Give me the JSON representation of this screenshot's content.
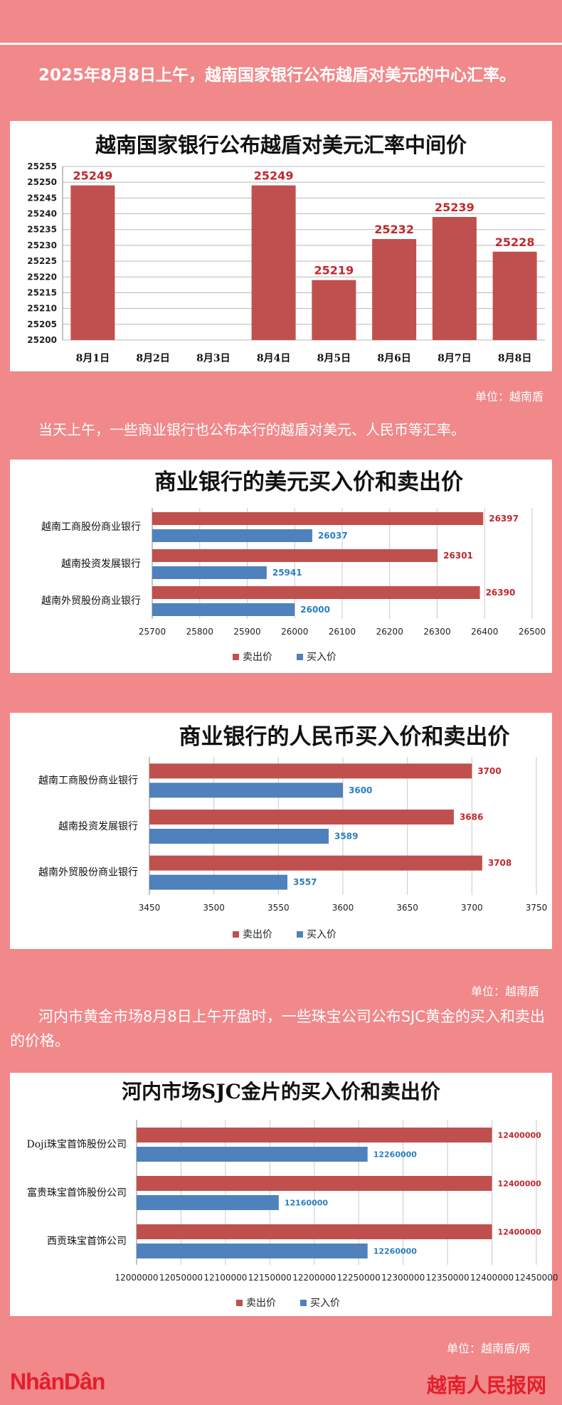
{
  "intro_1": "2025年8月8日上午，越南国家银行公布越盾对美元的中心汇率。",
  "intro_2": "当天上午，一些商业银行也公布本行的越盾对美元、人民币等汇率。",
  "unit_1": "单位：越南盾",
  "unit_2": "单位：越南盾",
  "intro_3": "河内市黄金市场8月8日上午开盘时，一些珠宝公司公布SJC黄金的买入和卖出的价格。",
  "unit_3": "单位：越南盾/两",
  "footer": {
    "logo": "NhânDân",
    "site": "越南人民报网"
  },
  "colors": {
    "background": "#f1888a",
    "sell": "#c0504d",
    "buy": "#4f81bd",
    "sell_label": "#c0282c",
    "buy_label": "#2a7fc0"
  },
  "chart_data": [
    {
      "type": "bar",
      "title": "越南国家银行公布越盾对美元汇率中间价",
      "categories": [
        "8月1日",
        "8月2日",
        "8月3日",
        "8月4日",
        "8月5日",
        "8月6日",
        "8月7日",
        "8月8日"
      ],
      "values": [
        25249,
        null,
        null,
        25249,
        25219,
        25232,
        25239,
        25228
      ],
      "data_labels": [
        "25249",
        "",
        "",
        "25249",
        "25219",
        "25232",
        "25239",
        "25228"
      ],
      "ylim": [
        25200,
        25255
      ],
      "yticks": [
        "25200",
        "25205",
        "25210",
        "25215",
        "25220",
        "25225",
        "25230",
        "25235",
        "25240",
        "25245",
        "25250",
        "25255"
      ],
      "grid": true,
      "legend": "none"
    },
    {
      "type": "bar",
      "orientation": "horizontal",
      "title": "商业银行的美元买入价和卖出价",
      "categories": [
        "越南工商股份商业银行",
        "越南投资发展银行",
        "越南外贸股份商业银行"
      ],
      "series": [
        {
          "name": "卖出价",
          "values": [
            26397,
            26301,
            26390
          ]
        },
        {
          "name": "买入价",
          "values": [
            26037,
            25941,
            26000
          ]
        }
      ],
      "xlim": [
        25700,
        26500
      ],
      "xticks": [
        "25700",
        "25800",
        "25900",
        "26000",
        "26100",
        "26200",
        "26300",
        "26400",
        "26500"
      ],
      "grid": true,
      "legend": "bottom"
    },
    {
      "type": "bar",
      "orientation": "horizontal",
      "title": "商业银行的人民币买入价和卖出价",
      "categories": [
        "越南工商股份商业银行",
        "越南投资发展银行",
        "越南外贸股份商业银行"
      ],
      "series": [
        {
          "name": "卖出价",
          "values": [
            3700,
            3686,
            3708
          ]
        },
        {
          "name": "买入价",
          "values": [
            3600,
            3589,
            3557
          ]
        }
      ],
      "xlim": [
        3450,
        3750
      ],
      "xticks": [
        "3450",
        "3500",
        "3550",
        "3600",
        "3650",
        "3700",
        "3750"
      ],
      "grid": true,
      "legend": "bottom"
    },
    {
      "type": "bar",
      "orientation": "horizontal",
      "title": "河内市场SJC金片的买入价和卖出价",
      "categories": [
        "Doji珠宝首饰股份公司",
        "富贵珠宝首饰股份公司",
        "西贡珠宝首饰公司"
      ],
      "series": [
        {
          "name": "卖出价",
          "values": [
            12400000,
            12400000,
            12400000
          ]
        },
        {
          "name": "买入价",
          "values": [
            12260000,
            12160000,
            12260000
          ]
        }
      ],
      "xlim": [
        12000000,
        12450000
      ],
      "xticks": [
        "12000000",
        "12050000",
        "12100000",
        "12150000",
        "12200000",
        "12250000",
        "12300000",
        "12350000",
        "12400000",
        "12450000"
      ],
      "grid": true,
      "legend": "bottom"
    }
  ]
}
